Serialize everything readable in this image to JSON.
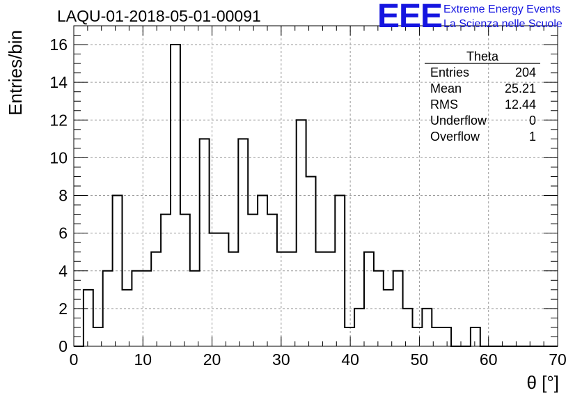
{
  "chart_data": {
    "type": "histogram",
    "title": "LAQU-01-2018-05-01-00091",
    "xlabel": "θ [°]",
    "ylabel": "Entries/bin",
    "xlim": [
      0,
      70
    ],
    "ylim": [
      0,
      17
    ],
    "xticks": [
      "0",
      "10",
      "20",
      "30",
      "40",
      "50",
      "60",
      "70"
    ],
    "yticks": [
      "0",
      "2",
      "4",
      "6",
      "8",
      "10",
      "12",
      "14",
      "16"
    ],
    "xtick_values": [
      0,
      10,
      20,
      30,
      40,
      50,
      60,
      70
    ],
    "ytick_values": [
      0,
      2,
      4,
      6,
      8,
      10,
      12,
      14,
      16
    ],
    "grid": true,
    "bin_width": 1.4,
    "x_start": 0,
    "values": [
      0,
      3,
      1,
      4,
      8,
      3,
      4,
      4,
      5,
      7,
      16,
      7,
      4,
      11,
      6,
      6,
      5,
      11,
      7,
      8,
      7,
      5,
      5,
      12,
      9,
      5,
      5,
      8,
      1,
      2,
      5,
      4,
      3,
      4,
      2,
      1,
      2,
      1,
      1,
      0,
      0,
      1,
      0,
      0,
      0,
      0,
      0,
      0,
      0,
      0
    ],
    "stats": {
      "title": "Theta",
      "rows": [
        {
          "label": "Entries",
          "value": "204"
        },
        {
          "label": "Mean",
          "value": "25.21"
        },
        {
          "label": "RMS",
          "value": "12.44"
        },
        {
          "label": "Underflow",
          "value": "0"
        },
        {
          "label": "Overflow",
          "value": "1"
        }
      ]
    }
  },
  "logo": {
    "text": "EEE",
    "line1": "Extreme Energy Events",
    "line2": "La Scienza nelle Scuole",
    "color": "#1515e0"
  }
}
